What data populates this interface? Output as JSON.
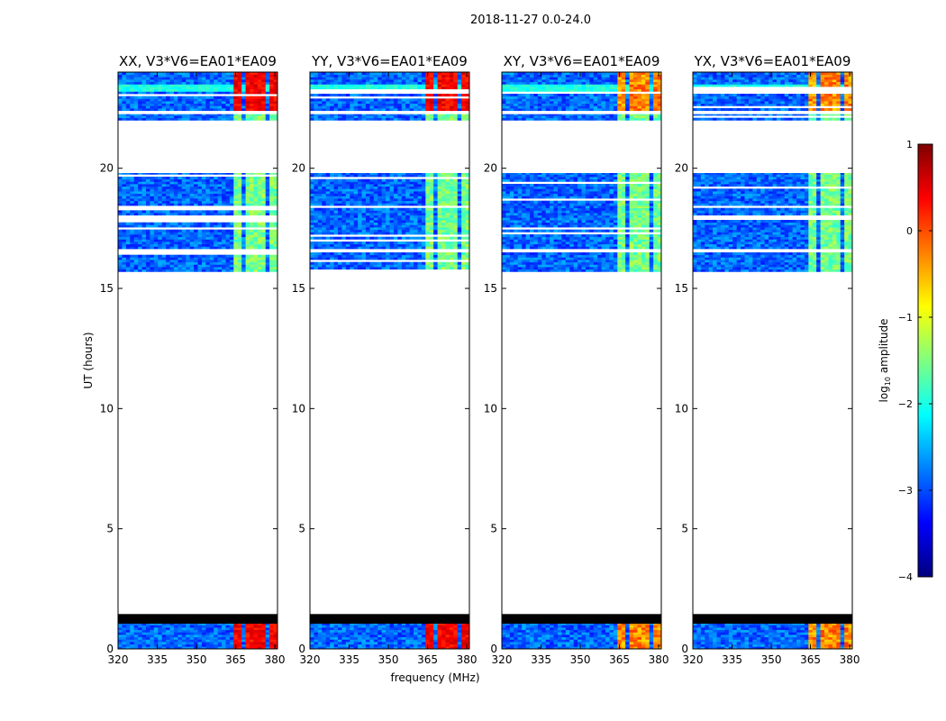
{
  "figure": {
    "suptitle": "2018-11-27 0.0-24.0",
    "shared_xlabel": "frequency (MHz)"
  },
  "chart_data": [
    {
      "type": "heatmap",
      "title": "XX, V3*V6=EA01*EA09",
      "xlabel": "",
      "ylabel": "UT (hours)",
      "xlim": [
        320,
        381
      ],
      "ylim": [
        0,
        24
      ],
      "xticks": [
        320,
        335,
        350,
        365,
        380
      ],
      "yticks": [
        0,
        5,
        10,
        15,
        20
      ],
      "rfi_level": "strong"
    },
    {
      "type": "heatmap",
      "title": "YY, V3*V6=EA01*EA09",
      "xlabel": "frequency (MHz)",
      "ylabel": "",
      "xlim": [
        320,
        381
      ],
      "ylim": [
        0,
        24
      ],
      "xticks": [
        320,
        335,
        350,
        365,
        380
      ],
      "yticks": [
        0,
        5,
        10,
        15,
        20
      ],
      "rfi_level": "strong"
    },
    {
      "type": "heatmap",
      "title": "XY, V3*V6=EA01*EA09",
      "xlabel": "",
      "ylabel": "",
      "xlim": [
        320,
        381
      ],
      "ylim": [
        0,
        24
      ],
      "xticks": [
        320,
        335,
        350,
        365,
        380
      ],
      "yticks": [
        0,
        5,
        10,
        15,
        20
      ],
      "rfi_level": "medium"
    },
    {
      "type": "heatmap",
      "title": "YX, V3*V6=EA01*EA09",
      "xlabel": "",
      "ylabel": "",
      "xlim": [
        320,
        381
      ],
      "ylim": [
        0,
        24
      ],
      "xticks": [
        320,
        335,
        350,
        365,
        380
      ],
      "yticks": [
        0,
        5,
        10,
        15,
        20
      ],
      "rfi_level": "medium"
    }
  ],
  "data_coverage_hours": [
    [
      0.0,
      1.05
    ],
    [
      15.7,
      16.5
    ],
    [
      16.65,
      19.8
    ],
    [
      22.0,
      22.25
    ],
    [
      22.4,
      24.0
    ]
  ],
  "flagged_black_hours": [
    [
      1.05,
      1.45
    ]
  ],
  "rfi_frequency_bands_mhz": [
    [
      364,
      368
    ],
    [
      369,
      373
    ],
    [
      374,
      377
    ],
    [
      378,
      381
    ]
  ],
  "colorbar": {
    "label": "log10 amplitude",
    "vmin": -4,
    "vmax": 1,
    "ticks": [
      1,
      0,
      -1,
      -2,
      -3,
      -4
    ],
    "tick_labels": [
      "1",
      "0",
      "−1",
      "−2",
      "−3",
      "−4"
    ],
    "colormap": "jet"
  }
}
